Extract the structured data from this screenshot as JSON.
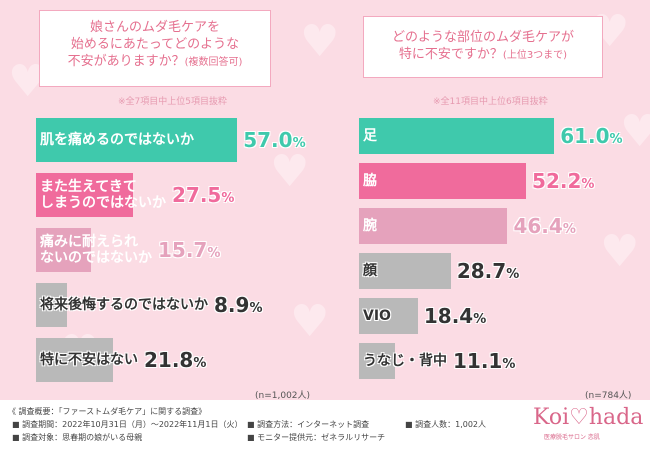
{
  "left": {
    "question_lines": [
      "娘さんのムダ毛ケアを",
      "始めるにあたってどのような",
      "不安がありますか？"
    ],
    "question_sub": "(複数回答可)",
    "note": "※全7項目中上位5項目抜粋",
    "total": "(n=1,002人)"
  },
  "right": {
    "question_lines": [
      "どのような部位のムダ毛ケアが",
      "特に不安ですか？"
    ],
    "question_sub": "(上位3つまで)",
    "note": "※全11項目中上位6項目抜粋",
    "total": "(n=784人)"
  },
  "chart_data": [
    {
      "type": "bar",
      "orientation": "horizontal",
      "categories": [
        "肌を痛めるのではないか",
        "また生えてきてしまうのではないか",
        "痛みに耐えられないのではないか",
        "将来後悔するのではないか",
        "特に不安はない"
      ],
      "category_lines": [
        [
          "肌を痛めるのではないか"
        ],
        [
          "また生えてきて",
          "しまうのではないか"
        ],
        [
          "痛みに耐えられ",
          "ないのではないか"
        ],
        [
          "将来後悔するのではないか"
        ],
        [
          "特に不安はない"
        ]
      ],
      "values": [
        57.0,
        27.5,
        15.7,
        8.9,
        21.8
      ],
      "labels": [
        "57.0",
        "27.5",
        "15.7",
        "8.9",
        "21.8"
      ],
      "unit": "%",
      "colors": [
        "#3fc9ac",
        "#f06b9c",
        "#e5a2bc",
        "#b9b9b9",
        "#b9b9b9"
      ]
    },
    {
      "type": "bar",
      "orientation": "horizontal",
      "categories": [
        "足",
        "脇",
        "腕",
        "顔",
        "VIO",
        "うなじ・背中"
      ],
      "values": [
        61.0,
        52.2,
        46.4,
        28.7,
        18.4,
        11.1
      ],
      "labels": [
        "61.0",
        "52.2",
        "46.4",
        "28.7",
        "18.4",
        "11.1"
      ],
      "unit": "%",
      "colors": [
        "#3fc9ac",
        "#f06b9c",
        "#e5a2bc",
        "#b9b9b9",
        "#b9b9b9",
        "#b9b9b9"
      ]
    }
  ],
  "footer": {
    "title": "《 調査概要：「ファーストムダ毛ケア」に関する調査》",
    "period": "■ 調査期間：2022年10月31日（月）～2022年11月1日（火）",
    "method": "■ 調査方法：インターネット調査",
    "count": "■ 調査人数：1,002人",
    "target": "■ 調査対象：思春期の娘がいる母親",
    "monitor": "■ モニター提供元：ゼネラルリサーチ"
  },
  "logo": {
    "text": "Koi♡hada",
    "sub": "医療脱毛サロン 恋肌"
  }
}
